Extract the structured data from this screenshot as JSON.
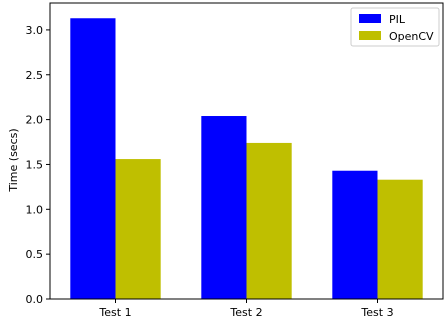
{
  "chart_data": {
    "type": "bar",
    "categories": [
      "Test 1",
      "Test 2",
      "Test 3"
    ],
    "series": [
      {
        "name": "PIL",
        "values": [
          3.13,
          2.04,
          1.43
        ],
        "color": "#0000ff"
      },
      {
        "name": "OpenCV",
        "values": [
          1.56,
          1.74,
          1.33
        ],
        "color": "#bfbf00"
      }
    ],
    "title": "",
    "xlabel": "",
    "ylabel": "Time (secs)",
    "ylim": [
      0,
      3.3
    ],
    "yticks": [
      "0.0",
      "0.5",
      "1.0",
      "1.5",
      "2.0",
      "2.5",
      "3.0"
    ],
    "grid": false,
    "legend_position": "top-right"
  }
}
